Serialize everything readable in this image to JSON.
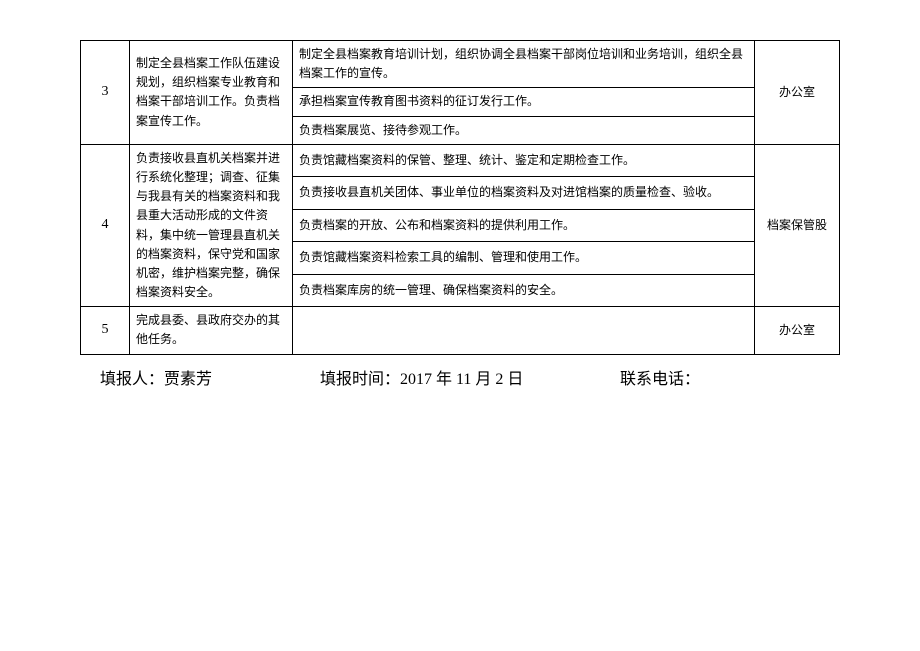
{
  "table": {
    "rows": [
      {
        "num": "3",
        "desc": "制定全县档案工作队伍建设规划，组织档案专业教育和档案干部培训工作。负责档案宣传工作。",
        "details": [
          "制定全县档案教育培训计划，组织协调全县档案干部岗位培训和业务培训，组织全县档案工作的宣传。",
          "承担档案宣传教育图书资料的征订发行工作。",
          "负责档案展览、接待参观工作。"
        ],
        "dept": "办公室"
      },
      {
        "num": "4",
        "desc": "负责接收县直机关档案并进行系统化整理；调查、征集与我县有关的档案资料和我县重大活动形成的文件资料，集中统一管理县直机关的档案资料，保守党和国家机密，维护档案完整，确保档案资料安全。",
        "details": [
          "负责馆藏档案资料的保管、整理、统计、鉴定和定期检查工作。",
          "负责接收县直机关团体、事业单位的档案资料及对进馆档案的质量检查、验收。",
          "负责档案的开放、公布和档案资料的提供利用工作。",
          "负责馆藏档案资料检索工具的编制、管理和使用工作。",
          "负责档案库房的统一管理、确保档案资料的安全。"
        ],
        "dept": "档案保管股"
      },
      {
        "num": "5",
        "desc": "完成县委、县政府交办的其他任务。",
        "details": [
          ""
        ],
        "dept": "办公室"
      }
    ]
  },
  "footer": {
    "reporter_label": "填报人：",
    "reporter_name": "贾素芳",
    "date_label": "填报时间：",
    "date_value": "2017 年 11 月 2 日",
    "phone_label": "联系电话：",
    "phone_value": ""
  }
}
